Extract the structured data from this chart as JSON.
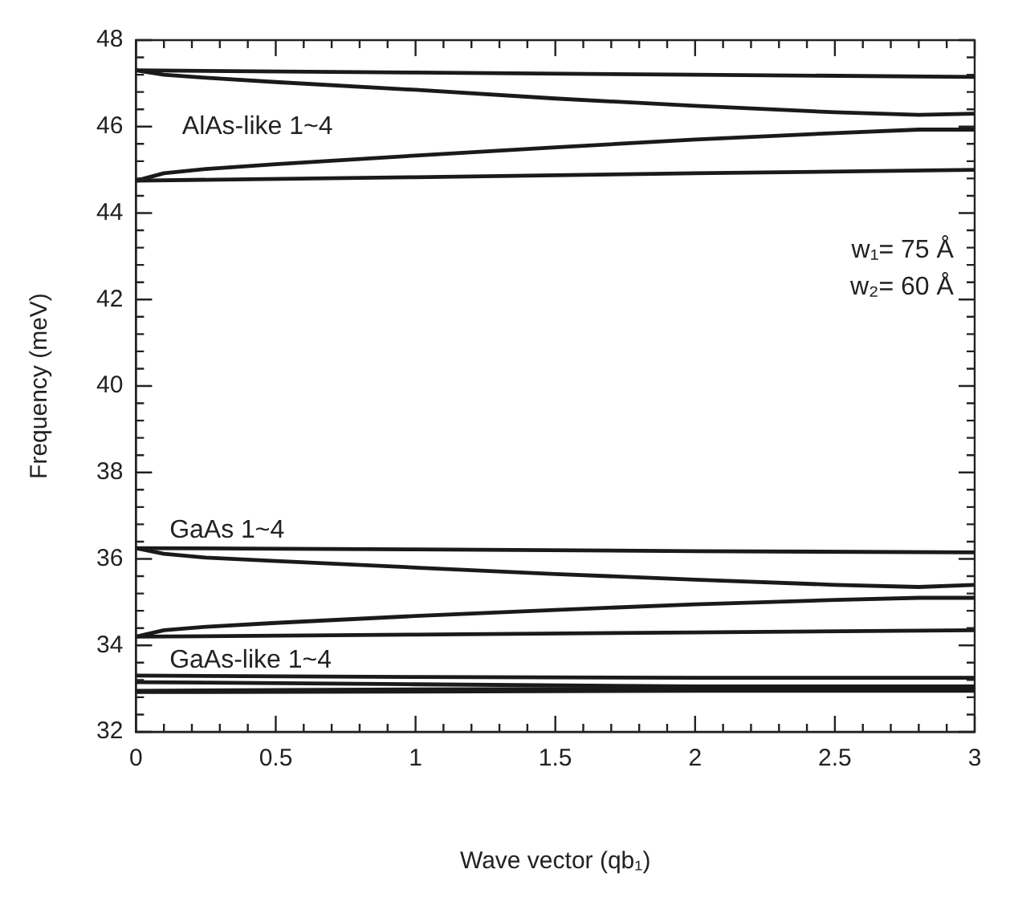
{
  "chart_data": {
    "type": "line",
    "xlabel": "Wave vector (qb₁)",
    "ylabel": "Frequency (meV)",
    "xlim": [
      0,
      3
    ],
    "xticks": [
      0,
      0.5,
      1,
      1.5,
      2,
      2.5,
      3
    ],
    "ylim": [
      32,
      48
    ],
    "yticks": [
      32,
      34,
      36,
      38,
      40,
      42,
      44,
      46,
      48
    ],
    "grid": false,
    "legend": false,
    "marker": "none",
    "line_style": "solid",
    "series": [
      {
        "color": "#1a1a1a",
        "x": [
          0,
          1,
          2,
          3
        ],
        "values": [
          47.3,
          47.25,
          47.2,
          47.15
        ]
      },
      {
        "color": "#1a1a1a",
        "x": [
          0,
          0.1,
          0.25,
          0.5,
          1,
          1.5,
          2,
          2.5,
          2.8,
          3
        ],
        "values": [
          47.3,
          47.2,
          47.13,
          47.03,
          46.85,
          46.65,
          46.48,
          46.33,
          46.27,
          46.3
        ]
      },
      {
        "color": "#1a1a1a",
        "x": [
          0,
          0.1,
          0.25,
          0.5,
          1,
          1.5,
          2,
          2.5,
          2.8,
          3
        ],
        "values": [
          44.75,
          44.92,
          45.02,
          45.13,
          45.33,
          45.52,
          45.7,
          45.85,
          45.93,
          45.93
        ]
      },
      {
        "color": "#1a1a1a",
        "x": [
          0,
          1,
          2,
          3
        ],
        "values": [
          44.75,
          44.83,
          44.92,
          45.0
        ]
      },
      {
        "color": "#1a1a1a",
        "x": [
          0,
          1,
          2,
          3
        ],
        "values": [
          36.25,
          36.22,
          36.18,
          36.15
        ]
      },
      {
        "color": "#1a1a1a",
        "x": [
          0,
          0.1,
          0.25,
          0.5,
          1,
          1.5,
          2,
          2.5,
          2.8,
          3
        ],
        "values": [
          36.25,
          36.12,
          36.03,
          35.95,
          35.8,
          35.65,
          35.52,
          35.4,
          35.35,
          35.4
        ]
      },
      {
        "color": "#1a1a1a",
        "x": [
          0,
          0.1,
          0.25,
          0.5,
          1,
          1.5,
          2,
          2.5,
          2.8,
          3
        ],
        "values": [
          34.2,
          34.35,
          34.43,
          34.52,
          34.68,
          34.82,
          34.95,
          35.05,
          35.1,
          35.1
        ]
      },
      {
        "color": "#1a1a1a",
        "x": [
          0,
          1,
          2,
          3
        ],
        "values": [
          34.2,
          34.25,
          34.3,
          34.35
        ]
      },
      {
        "color": "#1a1a1a",
        "x": [
          0,
          1,
          2,
          3
        ],
        "values": [
          33.3,
          33.27,
          33.25,
          33.25
        ]
      },
      {
        "color": "#1a1a1a",
        "x": [
          0,
          1,
          2,
          3
        ],
        "values": [
          33.15,
          33.1,
          33.05,
          33.05
        ]
      },
      {
        "color": "#1a1a1a",
        "x": [
          0,
          1,
          2,
          3
        ],
        "values": [
          32.95,
          32.98,
          33.0,
          33.0
        ]
      },
      {
        "color": "#1a1a1a",
        "x": [
          0,
          1,
          2,
          3
        ],
        "values": [
          32.92,
          32.93,
          32.95,
          32.95
        ]
      }
    ],
    "annotations": [
      "AlAs-like 1~4",
      "GaAs 1~4",
      "GaAs-like 1~4",
      "w₁= 75 Å",
      "w₂= 60 Å"
    ]
  }
}
